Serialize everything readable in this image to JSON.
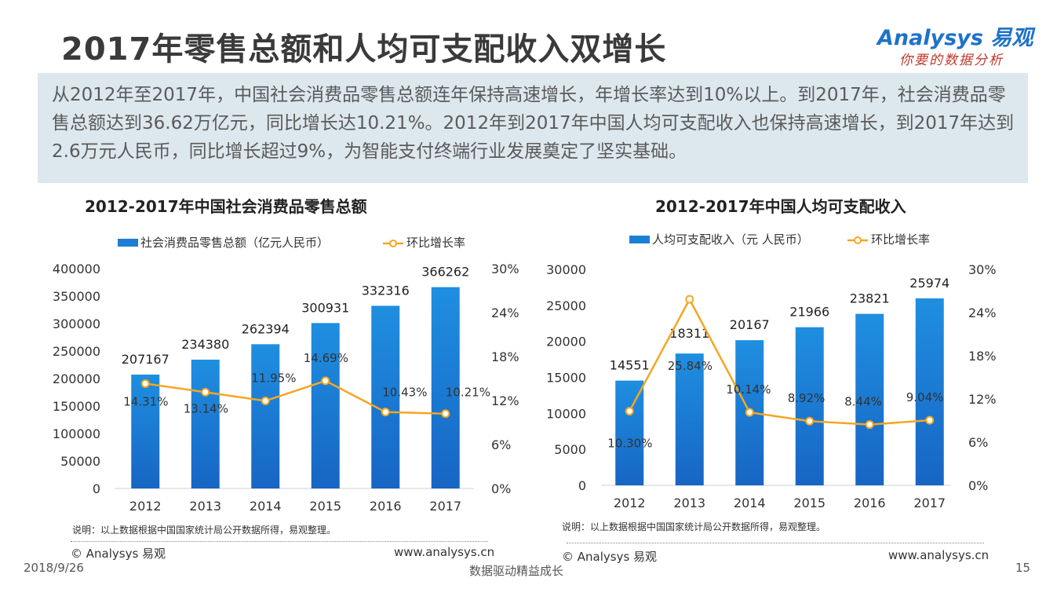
{
  "page": {
    "title": "2017年零售总额和人均可支配收入双增长",
    "logo": {
      "brand": "Analysys 易观",
      "slogan": "你要的数据分析"
    },
    "summary": "从2012年至2017年，中国社会消费品零售总额连年保持高速增长，年增长率达到10%以上。到2017年，社会消费品零售总额达到36.62万亿元，同比增长达10.21%。2012年到2017年中国人均可支配收入也保持高速增长，到2017年达到2.6万元人民币，同比增长超过9%，为智能支付终端行业发展奠定了坚实基础。",
    "note": "说明：以上数据根据中国国家统计局公开数据所得，易观整理。",
    "footer": {
      "copyright": "© Analysys 易观",
      "website": "www.analysys.cn"
    },
    "date": "2018/9/26",
    "tagline": "数据驱动精益成长",
    "page_number": "15",
    "colors": {
      "bar": "#1c7fd6",
      "line": "#f5a623",
      "summary_bg": "#dde8ee"
    }
  },
  "chart_data": [
    {
      "type": "bar",
      "title": "2012-2017年中国社会消费品零售总额",
      "categories": [
        "2012",
        "2013",
        "2014",
        "2015",
        "2016",
        "2017"
      ],
      "series": [
        {
          "name": "社会消费品零售总额（亿元人民币）",
          "values": [
            207167,
            234380,
            262394,
            300931,
            332316,
            366262
          ],
          "axis": "left",
          "kind": "bar"
        },
        {
          "name": "环比增长率",
          "values": [
            14.31,
            13.14,
            11.95,
            14.69,
            10.43,
            10.21
          ],
          "labels": [
            "14.31%",
            "13.14%",
            "11.95%",
            "14.69%",
            "10.43%",
            "10.21%"
          ],
          "axis": "right",
          "kind": "line"
        }
      ],
      "y_left": {
        "ticks": [
          "0",
          "50000",
          "100000",
          "150000",
          "200000",
          "250000",
          "300000",
          "350000",
          "400000"
        ],
        "ylim": [
          0,
          400000
        ]
      },
      "y_right": {
        "ticks": [
          "0%",
          "6%",
          "12%",
          "18%",
          "24%",
          "30%"
        ],
        "ylim": [
          0,
          30
        ]
      },
      "legend": "top"
    },
    {
      "type": "bar",
      "title": "2012-2017年中国人均可支配收入",
      "categories": [
        "2012",
        "2013",
        "2014",
        "2015",
        "2016",
        "2017"
      ],
      "series": [
        {
          "name": "人均可支配收入（元 人民币）",
          "values": [
            14551,
            18311,
            20167,
            21966,
            23821,
            25974
          ],
          "axis": "left",
          "kind": "bar"
        },
        {
          "name": "环比增长率",
          "values": [
            10.3,
            25.84,
            10.14,
            8.92,
            8.44,
            9.04
          ],
          "labels": [
            "10.30%",
            "25.84%",
            "10.14%",
            "8.92%",
            "8.44%",
            "9.04%"
          ],
          "axis": "right",
          "kind": "line"
        }
      ],
      "y_left": {
        "ticks": [
          "0",
          "5000",
          "10000",
          "15000",
          "20000",
          "25000",
          "30000"
        ],
        "ylim": [
          0,
          30000
        ]
      },
      "y_right": {
        "ticks": [
          "0%",
          "6%",
          "12%",
          "18%",
          "24%",
          "30%"
        ],
        "ylim": [
          0,
          30
        ]
      },
      "legend": "top"
    }
  ]
}
